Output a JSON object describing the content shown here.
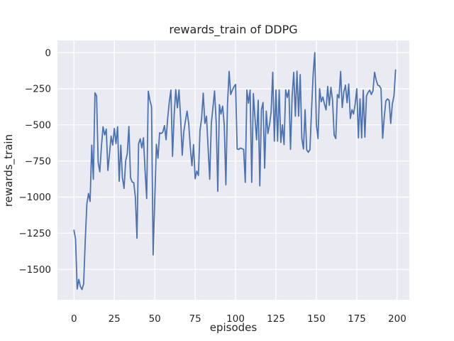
{
  "figure": {
    "title": "rewards_train of DDPG",
    "xlabel": "episodes",
    "ylabel": "rewards_train",
    "colors": {
      "figure_bg": "#ffffff",
      "axes_bg": "#eaeaf2",
      "grid": "#ffffff",
      "line": "#4c72b0",
      "text": "#262626"
    }
  },
  "chart_data": {
    "type": "line",
    "title": "rewards_train of DDPG",
    "xlabel": "episodes",
    "ylabel": "rewards_train",
    "grid": true,
    "legend": false,
    "x_ticks": [
      0,
      25,
      50,
      75,
      100,
      125,
      150,
      175,
      200
    ],
    "y_ticks": [
      0,
      -250,
      -500,
      -750,
      -1000,
      -1250,
      -1500
    ],
    "xlim": [
      -10.2,
      207.5
    ],
    "ylim": [
      -1711,
      84
    ],
    "series": [
      {
        "name": "rewards_train",
        "color": "#4c72b0",
        "x_start": 0,
        "x_step": 1,
        "values": [
          -1230,
          -1290,
          -1636,
          -1570,
          -1619,
          -1640,
          -1600,
          -1300,
          -1045,
          -975,
          -1030,
          -640,
          -877,
          -278,
          -300,
          -759,
          -825,
          -650,
          -513,
          -570,
          -530,
          -816,
          -700,
          -578,
          -640,
          -525,
          -630,
          -513,
          -890,
          -640,
          -865,
          -940,
          -750,
          -700,
          -511,
          -865,
          -895,
          -900,
          -1000,
          -1285,
          -630,
          -597,
          -660,
          -590,
          -815,
          -1010,
          -267,
          -330,
          -373,
          -1400,
          -1020,
          -635,
          -730,
          -555,
          -560,
          -550,
          -505,
          -603,
          -455,
          -340,
          -259,
          -718,
          -431,
          -256,
          -382,
          -258,
          -455,
          -710,
          -545,
          -470,
          -405,
          -490,
          -655,
          -783,
          -637,
          -873,
          -820,
          -850,
          -537,
          -455,
          -280,
          -490,
          -440,
          -655,
          -877,
          -490,
          -380,
          -265,
          -480,
          -960,
          -360,
          -425,
          -370,
          -500,
          -915,
          -360,
          -130,
          -290,
          -260,
          -236,
          -220,
          -667,
          -670,
          -660,
          -665,
          -670,
          -898,
          -259,
          -350,
          -259,
          -898,
          -283,
          -450,
          -604,
          -330,
          -922,
          -395,
          -345,
          -800,
          -405,
          -560,
          -500,
          -410,
          -136,
          -613,
          -259,
          -613,
          -258,
          -621,
          -500,
          -637,
          -258,
          -310,
          -258,
          -670,
          -300,
          -136,
          -440,
          -128,
          -440,
          -152,
          -595,
          -667,
          -395,
          -672,
          -690,
          -672,
          -400,
          -150,
          0,
          -497,
          -595,
          -250,
          -340,
          -307,
          -356,
          -397,
          -234,
          -365,
          -240,
          -330,
          -570,
          -595,
          -290,
          -313,
          -130,
          -380,
          -272,
          -225,
          -347,
          -217,
          -456,
          -395,
          -425,
          -355,
          -250,
          -590,
          -320,
          -590,
          -260,
          -585,
          -300,
          -275,
          -260,
          -290,
          -265,
          -136,
          -190,
          -225,
          -230,
          -250,
          -593,
          -445,
          -335,
          -320,
          -330,
          -490,
          -355,
          -300,
          -120
        ]
      }
    ]
  }
}
